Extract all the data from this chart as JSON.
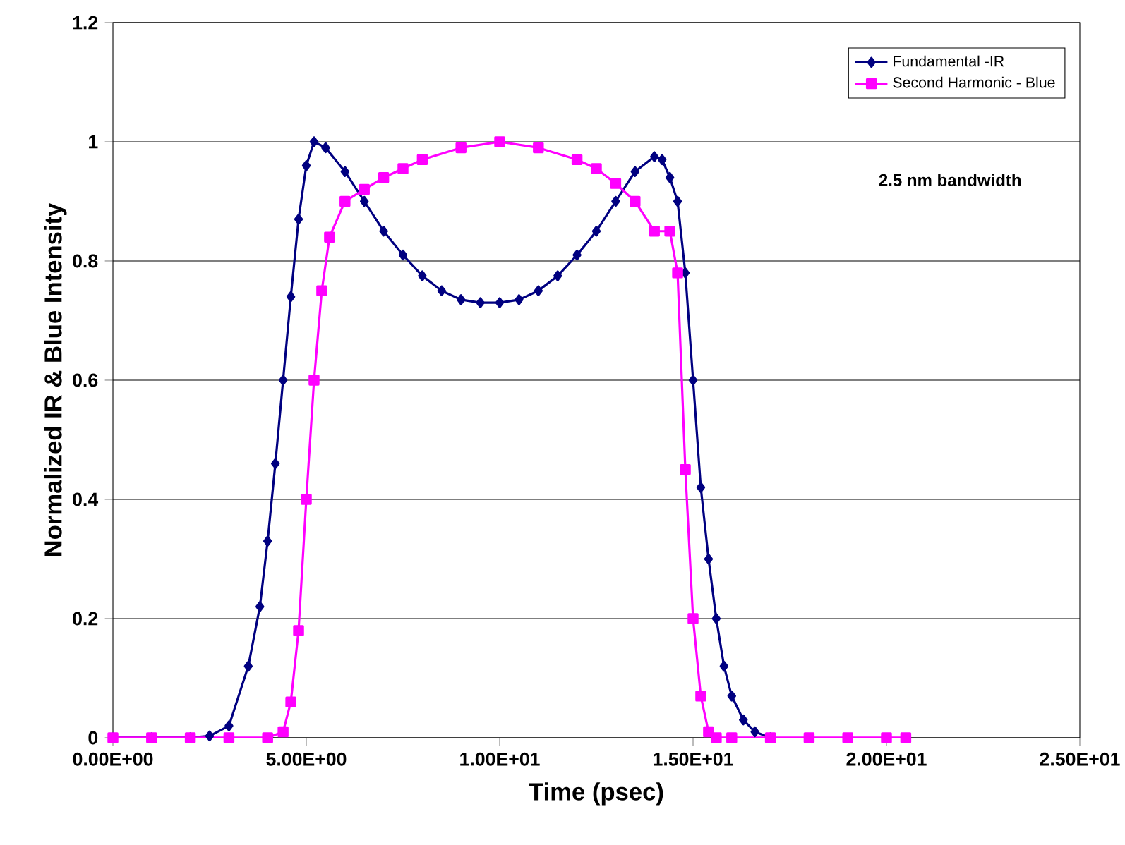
{
  "chart_data": {
    "type": "line",
    "xlabel": "Time (psec)",
    "ylabel": "Normalized IR & Blue Intensity",
    "annotations": [
      "2.5 nm bandwidth"
    ],
    "xlim": [
      0,
      25
    ],
    "ylim": [
      0,
      1.2
    ],
    "xticks": [
      {
        "value": 0,
        "label": "0.00E+00"
      },
      {
        "value": 5,
        "label": "5.00E+00"
      },
      {
        "value": 10,
        "label": "1.00E+01"
      },
      {
        "value": 15,
        "label": "1.50E+01"
      },
      {
        "value": 20,
        "label": "2.00E+01"
      },
      {
        "value": 25,
        "label": "2.50E+01"
      }
    ],
    "yticks": [
      0,
      0.2,
      0.4,
      0.6,
      0.8,
      1,
      1.2
    ],
    "grid": "y",
    "legend": "top right",
    "series": [
      {
        "name": "Fundamental -IR",
        "color": "#000080",
        "marker": "diamond",
        "x": [
          0,
          1,
          2,
          2.5,
          3,
          3.5,
          3.8,
          4.0,
          4.2,
          4.4,
          4.6,
          4.8,
          5.0,
          5.2,
          5.5,
          6,
          6.5,
          7,
          7.5,
          8,
          8.5,
          9,
          9.5,
          10,
          10.5,
          11,
          11.5,
          12,
          12.5,
          13,
          13.5,
          14,
          14.2,
          14.4,
          14.6,
          14.8,
          15.0,
          15.2,
          15.4,
          15.6,
          15.8,
          16.0,
          16.3,
          16.6,
          17
        ],
        "values": [
          0,
          0,
          0,
          0.003,
          0.02,
          0.12,
          0.22,
          0.33,
          0.46,
          0.6,
          0.74,
          0.87,
          0.96,
          1.0,
          0.99,
          0.95,
          0.9,
          0.85,
          0.81,
          0.775,
          0.75,
          0.735,
          0.73,
          0.73,
          0.735,
          0.75,
          0.775,
          0.81,
          0.85,
          0.9,
          0.95,
          0.975,
          0.97,
          0.94,
          0.9,
          0.78,
          0.6,
          0.42,
          0.3,
          0.2,
          0.12,
          0.07,
          0.03,
          0.01,
          0
        ]
      },
      {
        "name": "Second Harmonic - Blue",
        "color": "#ff00ff",
        "marker": "square",
        "x": [
          0,
          1,
          2,
          3,
          4,
          4.4,
          4.6,
          4.8,
          5.0,
          5.2,
          5.4,
          5.6,
          6.0,
          6.5,
          7,
          7.5,
          8,
          9,
          10,
          11,
          12,
          12.5,
          13,
          13.5,
          14,
          14.4,
          14.6,
          14.8,
          15.0,
          15.2,
          15.4,
          15.6,
          16,
          17,
          18,
          19,
          20,
          20.5
        ],
        "values": [
          0,
          0,
          0,
          0,
          0,
          0.01,
          0.06,
          0.18,
          0.4,
          0.6,
          0.75,
          0.84,
          0.9,
          0.92,
          0.94,
          0.955,
          0.97,
          0.99,
          1.0,
          0.99,
          0.97,
          0.955,
          0.93,
          0.9,
          0.85,
          0.85,
          0.78,
          0.45,
          0.2,
          0.07,
          0.01,
          0,
          0,
          0,
          0,
          0,
          0,
          0
        ]
      }
    ]
  }
}
